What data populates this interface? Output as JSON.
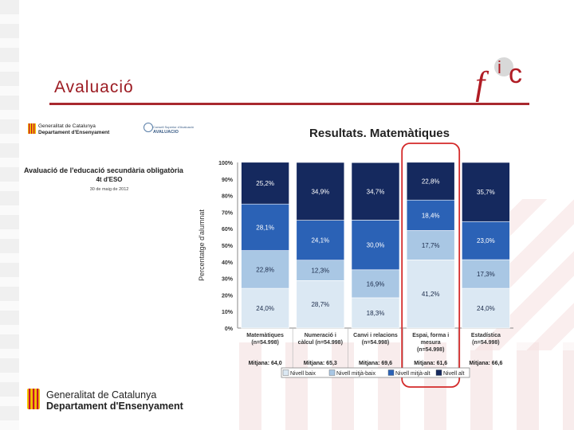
{
  "slide": {
    "title": "Avaluació",
    "logo_text": "fic",
    "footer_line1": "Generalitat de Catalunya",
    "footer_line2": "Departament d'Ensenyament"
  },
  "cover": {
    "gen_line1": "Generalitat de Catalunya",
    "gen_line2": "Departament d'Ensenyament",
    "agency_line1": "Consell Superior d'Avaluació",
    "agency_line2": "AVALUACIO",
    "title_line1": "Avaluació de l'educació secundària obligatòria",
    "title_line2": "4t d'ESO",
    "date": "30 de maig de 2012"
  },
  "chart_data": {
    "type": "bar",
    "stacked": true,
    "title": "Resultats. Matemàtiques",
    "ylabel": "Percentatge d'alumnat",
    "ylim": [
      0,
      100
    ],
    "yticks": [
      "0%",
      "10%",
      "20%",
      "30%",
      "40%",
      "50%",
      "60%",
      "70%",
      "80%",
      "90%",
      "100%"
    ],
    "categories": [
      {
        "line1": "Matemàtiques",
        "line2": "(n=54.998)",
        "mitjana": "Mitjana: 64,0"
      },
      {
        "line1": "Numeració i",
        "line2": "càlcul (n=54.998)",
        "mitjana": "Mitjana: 65,3"
      },
      {
        "line1": "Canvi i relacions",
        "line2": "(n=54.998)",
        "mitjana": "Mitjana: 69,6"
      },
      {
        "line1": "Espai, forma i",
        "line2": "mesura",
        "line3": "(n=54.998)",
        "mitjana": "Mitjana: 61,6"
      },
      {
        "line1": "Estadística",
        "line2": "(n=54.998)",
        "mitjana": "Mitjana: 66,6"
      }
    ],
    "series": [
      {
        "name": "Nivell baix",
        "color": "#dbe8f3",
        "values": [
          24.0,
          28.7,
          18.3,
          41.2,
          24.0
        ],
        "labels": [
          "24,0%",
          "28,7%",
          "18,3%",
          "41,2%",
          "24,0%"
        ]
      },
      {
        "name": "Nivell mitjà-baix",
        "color": "#a9c7e4",
        "values": [
          22.8,
          12.3,
          16.9,
          17.7,
          17.3
        ],
        "labels": [
          "22,8%",
          "12,3%",
          "16,9%",
          "17,7%",
          "17,3%"
        ]
      },
      {
        "name": "Nivell mitjà-alt",
        "color": "#2b62b6",
        "values": [
          28.1,
          24.1,
          30.0,
          18.4,
          23.0
        ],
        "labels": [
          "28,1%",
          "24,1%",
          "30,0%",
          "18,4%",
          "23,0%"
        ]
      },
      {
        "name": "Nivell alt",
        "color": "#15295e",
        "values": [
          25.2,
          34.9,
          34.7,
          22.8,
          35.7
        ],
        "labels": [
          "25,2%",
          "34,9%",
          "34,7%",
          "22,8%",
          "35,7%"
        ]
      }
    ],
    "highlighted_category": 3,
    "highlight_color": "#d42a2a",
    "grid": false,
    "legend_position": "bottom"
  }
}
